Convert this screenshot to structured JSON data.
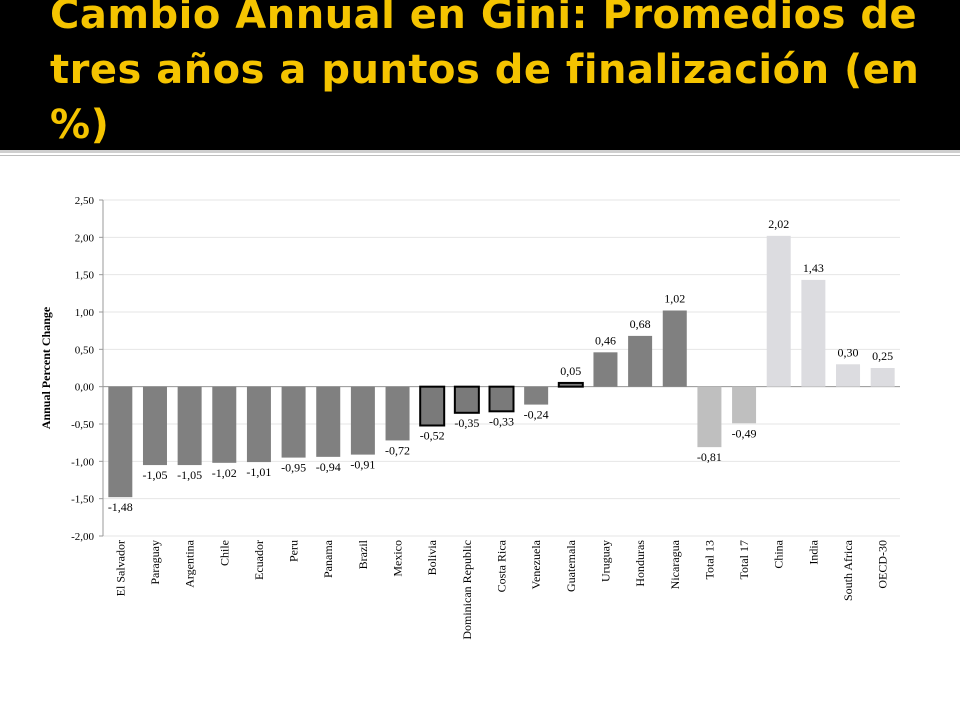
{
  "title": "Cambio Annual en Gini: Promedios de tres años a puntos de finalización (en %)",
  "chart_data": {
    "type": "bar",
    "ylabel": "Annual Percent Change",
    "ylim": [
      -2.0,
      2.5
    ],
    "ytick_step": 0.5,
    "ytick_labels": [
      "-2,00",
      "-1,50",
      "-1,00",
      "-0,50",
      "0,00",
      "0,50",
      "1,00",
      "1,50",
      "2,00",
      "2,50"
    ],
    "grid": true,
    "categories": [
      "El Salvador",
      "Paraguay",
      "Argentina",
      "Chile",
      "Ecuador",
      "Peru",
      "Panama",
      "Brazil",
      "Mexico",
      "Bolivia",
      "Dominican Republic",
      "Costa Rica",
      "Venezuela",
      "Guatemala",
      "Uruguay",
      "Honduras",
      "Nicaragua",
      "Total 13",
      "Total 17",
      "China",
      "India",
      "South Africa",
      "OECD-30"
    ],
    "values": [
      -1.48,
      -1.05,
      -1.05,
      -1.02,
      -1.01,
      -0.95,
      -0.94,
      -0.91,
      -0.72,
      -0.52,
      -0.35,
      -0.33,
      -0.24,
      0.05,
      0.46,
      0.68,
      1.02,
      -0.81,
      -0.49,
      2.02,
      1.43,
      0.3,
      0.25
    ],
    "value_labels": [
      "-1,48",
      "-1,05",
      "-1,05",
      "-1,02",
      "-1,01",
      "-0,95",
      "-0,94",
      "-0,91",
      "-0,72",
      "-0,52",
      "-0,35",
      "-0,33",
      "-0,24",
      "0,05",
      "0,46",
      "0,68",
      "1,02",
      "-0,81",
      "-0,49",
      "2,02",
      "1,43",
      "0,30",
      "0,25"
    ],
    "colors": {
      "latin_america": "#808080",
      "outlined_fill": "#7a7a7a",
      "outline": "#000000",
      "totals": "#bfbfbf",
      "other_regions": "#dcdce0"
    },
    "bar_groups": [
      "latin_america",
      "latin_america",
      "latin_america",
      "latin_america",
      "latin_america",
      "latin_america",
      "latin_america",
      "latin_america",
      "latin_america",
      "outlined",
      "outlined",
      "outlined",
      "latin_america",
      "outlined",
      "latin_america",
      "latin_america",
      "latin_america",
      "totals",
      "totals",
      "other_regions",
      "other_regions",
      "other_regions",
      "other_regions"
    ]
  }
}
